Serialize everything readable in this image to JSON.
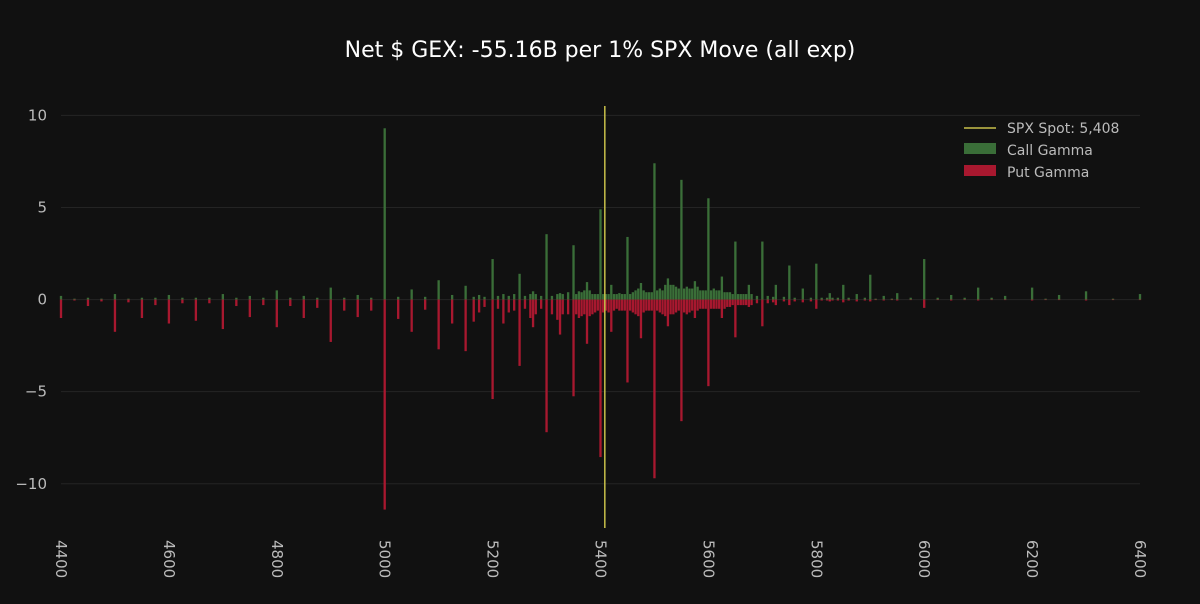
{
  "chart_data": {
    "type": "bar",
    "title": "Net $ GEX: -55.16B per 1% SPX Move (all exp)",
    "xlabel": "",
    "ylabel": "",
    "xlim": [
      4400,
      6400
    ],
    "ylim": [
      -12.4,
      10.4
    ],
    "x_ticks": [
      4400,
      4600,
      4800,
      5000,
      5200,
      5400,
      5600,
      5800,
      6000,
      6200,
      6400
    ],
    "y_ticks": [
      10,
      5,
      0,
      -5,
      -10
    ],
    "y_tick_labels": [
      "10",
      "5",
      "0",
      "−5",
      "−10"
    ],
    "grid": true,
    "legend_position": "top-right",
    "spot": {
      "label": "SPX Spot: 5,408",
      "value": 5408,
      "color": "#c8c04a"
    },
    "series": [
      {
        "name": "Call Gamma",
        "color": "#3a6e38",
        "points": [
          [
            4400,
            0.2
          ],
          [
            4425,
            0.05
          ],
          [
            4450,
            0.1
          ],
          [
            4475,
            0.05
          ],
          [
            4500,
            0.3
          ],
          [
            4525,
            0.05
          ],
          [
            4550,
            0.1
          ],
          [
            4575,
            0.1
          ],
          [
            4600,
            0.25
          ],
          [
            4625,
            0.1
          ],
          [
            4650,
            0.1
          ],
          [
            4675,
            0.1
          ],
          [
            4700,
            0.3
          ],
          [
            4725,
            0.1
          ],
          [
            4750,
            0.2
          ],
          [
            4775,
            0.1
          ],
          [
            4800,
            0.5
          ],
          [
            4825,
            0.1
          ],
          [
            4850,
            0.2
          ],
          [
            4875,
            0.1
          ],
          [
            4900,
            0.65
          ],
          [
            4925,
            0.1
          ],
          [
            4950,
            0.25
          ],
          [
            4975,
            0.1
          ],
          [
            5000,
            9.3
          ],
          [
            5025,
            0.15
          ],
          [
            5050,
            0.55
          ],
          [
            5075,
            0.15
          ],
          [
            5100,
            1.05
          ],
          [
            5125,
            0.25
          ],
          [
            5150,
            0.75
          ],
          [
            5165,
            0.15
          ],
          [
            5175,
            0.25
          ],
          [
            5185,
            0.15
          ],
          [
            5200,
            2.2
          ],
          [
            5210,
            0.2
          ],
          [
            5220,
            0.3
          ],
          [
            5230,
            0.2
          ],
          [
            5240,
            0.3
          ],
          [
            5250,
            1.4
          ],
          [
            5260,
            0.2
          ],
          [
            5270,
            0.3
          ],
          [
            5275,
            0.45
          ],
          [
            5280,
            0.3
          ],
          [
            5290,
            0.2
          ],
          [
            5300,
            3.55
          ],
          [
            5310,
            0.2
          ],
          [
            5320,
            0.3
          ],
          [
            5325,
            0.35
          ],
          [
            5330,
            0.3
          ],
          [
            5340,
            0.4
          ],
          [
            5350,
            2.95
          ],
          [
            5355,
            0.3
          ],
          [
            5360,
            0.45
          ],
          [
            5365,
            0.4
          ],
          [
            5370,
            0.5
          ],
          [
            5375,
            0.95
          ],
          [
            5380,
            0.5
          ],
          [
            5385,
            0.3
          ],
          [
            5390,
            0.3
          ],
          [
            5395,
            0.3
          ],
          [
            5400,
            4.9
          ],
          [
            5405,
            0.3
          ],
          [
            5410,
            0.3
          ],
          [
            5415,
            0.3
          ],
          [
            5420,
            0.8
          ],
          [
            5425,
            0.3
          ],
          [
            5430,
            0.3
          ],
          [
            5435,
            0.35
          ],
          [
            5440,
            0.3
          ],
          [
            5445,
            0.3
          ],
          [
            5450,
            3.4
          ],
          [
            5455,
            0.3
          ],
          [
            5460,
            0.4
          ],
          [
            5465,
            0.5
          ],
          [
            5470,
            0.6
          ],
          [
            5475,
            0.9
          ],
          [
            5480,
            0.5
          ],
          [
            5485,
            0.4
          ],
          [
            5490,
            0.4
          ],
          [
            5495,
            0.4
          ],
          [
            5500,
            7.4
          ],
          [
            5505,
            0.5
          ],
          [
            5510,
            0.6
          ],
          [
            5515,
            0.5
          ],
          [
            5520,
            0.8
          ],
          [
            5525,
            1.15
          ],
          [
            5530,
            0.8
          ],
          [
            5535,
            0.8
          ],
          [
            5540,
            0.7
          ],
          [
            5545,
            0.6
          ],
          [
            5550,
            6.5
          ],
          [
            5555,
            0.6
          ],
          [
            5560,
            0.7
          ],
          [
            5565,
            0.6
          ],
          [
            5570,
            0.6
          ],
          [
            5575,
            1.0
          ],
          [
            5580,
            0.7
          ],
          [
            5585,
            0.5
          ],
          [
            5590,
            0.5
          ],
          [
            5595,
            0.5
          ],
          [
            5600,
            5.5
          ],
          [
            5605,
            0.5
          ],
          [
            5610,
            0.6
          ],
          [
            5615,
            0.5
          ],
          [
            5620,
            0.5
          ],
          [
            5625,
            1.25
          ],
          [
            5630,
            0.4
          ],
          [
            5635,
            0.4
          ],
          [
            5640,
            0.4
          ],
          [
            5645,
            0.3
          ],
          [
            5650,
            3.15
          ],
          [
            5655,
            0.3
          ],
          [
            5660,
            0.3
          ],
          [
            5665,
            0.3
          ],
          [
            5670,
            0.3
          ],
          [
            5675,
            0.8
          ],
          [
            5680,
            0.3
          ],
          [
            5690,
            0.2
          ],
          [
            5700,
            3.15
          ],
          [
            5710,
            0.2
          ],
          [
            5720,
            0.15
          ],
          [
            5725,
            0.8
          ],
          [
            5740,
            0.15
          ],
          [
            5750,
            1.85
          ],
          [
            5760,
            0.1
          ],
          [
            5775,
            0.6
          ],
          [
            5790,
            0.1
          ],
          [
            5800,
            1.95
          ],
          [
            5810,
            0.1
          ],
          [
            5820,
            0.1
          ],
          [
            5825,
            0.35
          ],
          [
            5830,
            0.1
          ],
          [
            5840,
            0.1
          ],
          [
            5850,
            0.8
          ],
          [
            5860,
            0.1
          ],
          [
            5875,
            0.3
          ],
          [
            5890,
            0.1
          ],
          [
            5900,
            1.35
          ],
          [
            5910,
            0.05
          ],
          [
            5925,
            0.2
          ],
          [
            5940,
            0.05
          ],
          [
            5950,
            0.35
          ],
          [
            5975,
            0.1
          ],
          [
            6000,
            2.2
          ],
          [
            6025,
            0.1
          ],
          [
            6050,
            0.25
          ],
          [
            6075,
            0.1
          ],
          [
            6100,
            0.65
          ],
          [
            6125,
            0.1
          ],
          [
            6150,
            0.2
          ],
          [
            6200,
            0.65
          ],
          [
            6225,
            0.05
          ],
          [
            6250,
            0.25
          ],
          [
            6300,
            0.45
          ],
          [
            6350,
            0.05
          ],
          [
            6400,
            0.3
          ]
        ]
      },
      {
        "name": "Put Gamma",
        "color": "#a8182f",
        "points": [
          [
            4400,
            -1.0
          ],
          [
            4425,
            -0.05
          ],
          [
            4450,
            -0.35
          ],
          [
            4475,
            -0.1
          ],
          [
            4500,
            -1.75
          ],
          [
            4525,
            -0.15
          ],
          [
            4550,
            -1.0
          ],
          [
            4575,
            -0.3
          ],
          [
            4600,
            -1.3
          ],
          [
            4625,
            -0.2
          ],
          [
            4650,
            -1.15
          ],
          [
            4675,
            -0.2
          ],
          [
            4700,
            -1.6
          ],
          [
            4725,
            -0.35
          ],
          [
            4750,
            -0.95
          ],
          [
            4775,
            -0.3
          ],
          [
            4800,
            -1.5
          ],
          [
            4825,
            -0.35
          ],
          [
            4850,
            -1.0
          ],
          [
            4875,
            -0.45
          ],
          [
            4900,
            -2.3
          ],
          [
            4925,
            -0.6
          ],
          [
            4950,
            -0.95
          ],
          [
            4975,
            -0.6
          ],
          [
            5000,
            -11.4
          ],
          [
            5025,
            -1.05
          ],
          [
            5050,
            -1.75
          ],
          [
            5075,
            -0.55
          ],
          [
            5100,
            -2.7
          ],
          [
            5125,
            -1.3
          ],
          [
            5150,
            -2.8
          ],
          [
            5165,
            -1.2
          ],
          [
            5175,
            -0.7
          ],
          [
            5185,
            -0.4
          ],
          [
            5200,
            -5.4
          ],
          [
            5210,
            -0.5
          ],
          [
            5220,
            -1.3
          ],
          [
            5230,
            -0.7
          ],
          [
            5240,
            -0.6
          ],
          [
            5250,
            -3.6
          ],
          [
            5260,
            -0.5
          ],
          [
            5270,
            -1.0
          ],
          [
            5275,
            -1.5
          ],
          [
            5280,
            -0.8
          ],
          [
            5290,
            -0.5
          ],
          [
            5300,
            -7.2
          ],
          [
            5310,
            -0.8
          ],
          [
            5320,
            -1.1
          ],
          [
            5325,
            -1.9
          ],
          [
            5330,
            -0.8
          ],
          [
            5340,
            -0.8
          ],
          [
            5350,
            -5.25
          ],
          [
            5355,
            -0.8
          ],
          [
            5360,
            -1.0
          ],
          [
            5365,
            -0.9
          ],
          [
            5370,
            -0.8
          ],
          [
            5375,
            -2.4
          ],
          [
            5380,
            -0.9
          ],
          [
            5385,
            -0.8
          ],
          [
            5390,
            -0.7
          ],
          [
            5395,
            -0.6
          ],
          [
            5400,
            -8.55
          ],
          [
            5405,
            -0.7
          ],
          [
            5410,
            -0.6
          ],
          [
            5415,
            -0.7
          ],
          [
            5420,
            -1.75
          ],
          [
            5425,
            -0.6
          ],
          [
            5430,
            -0.5
          ],
          [
            5435,
            -0.6
          ],
          [
            5440,
            -0.6
          ],
          [
            5445,
            -0.6
          ],
          [
            5450,
            -4.5
          ],
          [
            5455,
            -0.6
          ],
          [
            5460,
            -0.7
          ],
          [
            5465,
            -0.8
          ],
          [
            5470,
            -0.9
          ],
          [
            5475,
            -2.1
          ],
          [
            5480,
            -0.7
          ],
          [
            5485,
            -0.6
          ],
          [
            5490,
            -0.6
          ],
          [
            5495,
            -0.6
          ],
          [
            5500,
            -9.7
          ],
          [
            5505,
            -0.6
          ],
          [
            5510,
            -0.7
          ],
          [
            5515,
            -0.8
          ],
          [
            5520,
            -0.9
          ],
          [
            5525,
            -1.45
          ],
          [
            5530,
            -0.8
          ],
          [
            5535,
            -0.8
          ],
          [
            5540,
            -0.7
          ],
          [
            5545,
            -0.6
          ],
          [
            5550,
            -6.6
          ],
          [
            5555,
            -0.7
          ],
          [
            5560,
            -0.8
          ],
          [
            5565,
            -0.7
          ],
          [
            5570,
            -0.6
          ],
          [
            5575,
            -1.0
          ],
          [
            5580,
            -0.6
          ],
          [
            5585,
            -0.5
          ],
          [
            5590,
            -0.5
          ],
          [
            5595,
            -0.5
          ],
          [
            5600,
            -4.7
          ],
          [
            5605,
            -0.5
          ],
          [
            5610,
            -0.5
          ],
          [
            5615,
            -0.5
          ],
          [
            5620,
            -0.5
          ],
          [
            5625,
            -1.0
          ],
          [
            5630,
            -0.5
          ],
          [
            5635,
            -0.4
          ],
          [
            5640,
            -0.4
          ],
          [
            5645,
            -0.3
          ],
          [
            5650,
            -2.05
          ],
          [
            5655,
            -0.3
          ],
          [
            5660,
            -0.3
          ],
          [
            5665,
            -0.3
          ],
          [
            5670,
            -0.3
          ],
          [
            5675,
            -0.4
          ],
          [
            5680,
            -0.3
          ],
          [
            5690,
            -0.2
          ],
          [
            5700,
            -1.45
          ],
          [
            5710,
            -0.2
          ],
          [
            5720,
            -0.15
          ],
          [
            5725,
            -0.3
          ],
          [
            5740,
            -0.1
          ],
          [
            5750,
            -0.3
          ],
          [
            5760,
            -0.1
          ],
          [
            5775,
            -0.15
          ],
          [
            5790,
            -0.1
          ],
          [
            5800,
            -0.5
          ],
          [
            5810,
            -0.05
          ],
          [
            5820,
            -0.05
          ],
          [
            5825,
            -0.1
          ],
          [
            5830,
            -0.05
          ],
          [
            5840,
            -0.05
          ],
          [
            5850,
            -0.15
          ],
          [
            5860,
            -0.05
          ],
          [
            5875,
            -0.1
          ],
          [
            5890,
            -0.05
          ],
          [
            5900,
            -0.1
          ],
          [
            5910,
            -0.02
          ],
          [
            5925,
            -0.05
          ],
          [
            5940,
            -0.02
          ],
          [
            5950,
            -0.05
          ],
          [
            5975,
            -0.02
          ],
          [
            6000,
            -0.45
          ],
          [
            6025,
            -0.02
          ],
          [
            6050,
            -0.05
          ],
          [
            6075,
            -0.02
          ],
          [
            6100,
            -0.05
          ],
          [
            6125,
            -0.02
          ],
          [
            6150,
            -0.02
          ],
          [
            6200,
            -0.05
          ],
          [
            6225,
            -0.02
          ],
          [
            6250,
            -0.02
          ],
          [
            6300,
            -0.05
          ],
          [
            6350,
            -0.02
          ],
          [
            6400,
            -0.02
          ]
        ]
      }
    ]
  }
}
